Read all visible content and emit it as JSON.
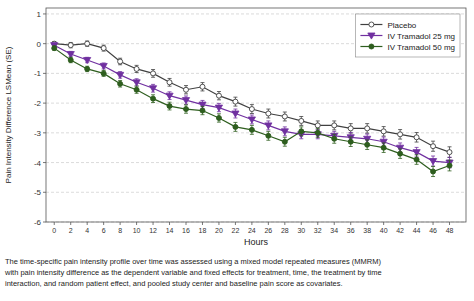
{
  "chart_data": {
    "type": "line",
    "xlabel": "Hours",
    "ylabel": "Pain Intensity Difference LSMean (SE)",
    "x": [
      0,
      2,
      4,
      6,
      8,
      10,
      12,
      14,
      16,
      18,
      20,
      22,
      24,
      26,
      28,
      30,
      32,
      34,
      36,
      38,
      40,
      42,
      44,
      46,
      48
    ],
    "xlim": [
      -1,
      50
    ],
    "xticks": [
      0,
      2,
      4,
      6,
      8,
      10,
      12,
      14,
      16,
      18,
      20,
      22,
      24,
      26,
      28,
      30,
      32,
      34,
      36,
      38,
      40,
      42,
      44,
      46,
      48
    ],
    "ylim": [
      -6,
      1.2
    ],
    "yticks": [
      1,
      0,
      -1,
      -2,
      -3,
      -4,
      -5,
      -6
    ],
    "grid": "y",
    "legend": "upper right",
    "series": [
      {
        "name": "Placebo",
        "color": "#404040",
        "marker": "open-circle",
        "values": [
          0.0,
          -0.05,
          0.0,
          -0.15,
          -0.6,
          -0.85,
          -1.0,
          -1.3,
          -1.55,
          -1.45,
          -1.75,
          -1.95,
          -2.2,
          -2.35,
          -2.45,
          -2.6,
          -2.75,
          -2.75,
          -2.85,
          -2.85,
          -2.95,
          -3.05,
          -3.15,
          -3.45,
          -3.65
        ],
        "errors": [
          0.07,
          0.09,
          0.09,
          0.1,
          0.11,
          0.12,
          0.13,
          0.13,
          0.14,
          0.14,
          0.14,
          0.15,
          0.15,
          0.15,
          0.15,
          0.15,
          0.15,
          0.15,
          0.16,
          0.16,
          0.16,
          0.16,
          0.16,
          0.17,
          0.18
        ]
      },
      {
        "name": "IV Tramadol 25 mg",
        "color": "#7030A0",
        "marker": "triangle-down",
        "values": [
          -0.05,
          -0.35,
          -0.55,
          -0.75,
          -1.05,
          -1.3,
          -1.5,
          -1.75,
          -1.9,
          -2.05,
          -2.15,
          -2.35,
          -2.55,
          -2.75,
          -2.95,
          -3.05,
          -3.05,
          -3.1,
          -3.15,
          -3.2,
          -3.3,
          -3.5,
          -3.65,
          -3.95,
          -4.0
        ],
        "errors": [
          0.07,
          0.09,
          0.09,
          0.1,
          0.11,
          0.12,
          0.13,
          0.13,
          0.14,
          0.14,
          0.14,
          0.15,
          0.15,
          0.15,
          0.15,
          0.15,
          0.15,
          0.15,
          0.16,
          0.16,
          0.16,
          0.16,
          0.16,
          0.17,
          0.18
        ]
      },
      {
        "name": "IV Tramadol 50 mg",
        "color": "#2E5E1E",
        "marker": "circle",
        "values": [
          -0.15,
          -0.55,
          -0.85,
          -1.0,
          -1.35,
          -1.55,
          -1.85,
          -2.1,
          -2.2,
          -2.25,
          -2.5,
          -2.8,
          -2.9,
          -3.1,
          -3.3,
          -2.95,
          -3.0,
          -3.2,
          -3.3,
          -3.4,
          -3.5,
          -3.7,
          -3.9,
          -4.3,
          -4.1
        ],
        "errors": [
          0.07,
          0.09,
          0.09,
          0.1,
          0.11,
          0.12,
          0.13,
          0.13,
          0.14,
          0.14,
          0.14,
          0.15,
          0.15,
          0.15,
          0.15,
          0.15,
          0.15,
          0.15,
          0.16,
          0.16,
          0.16,
          0.16,
          0.16,
          0.17,
          0.18
        ]
      }
    ],
    "annotations": [
      "The time-specific pain intensity profile over time was assessed using a mixed model repeated measures (MMRM)",
      "with pain intensity difference as the dependent variable and fixed effects for treatment, time, the treatment by time",
      "interaction, and random patient effect, and pooled study center and baseline pain score as covariates."
    ]
  }
}
